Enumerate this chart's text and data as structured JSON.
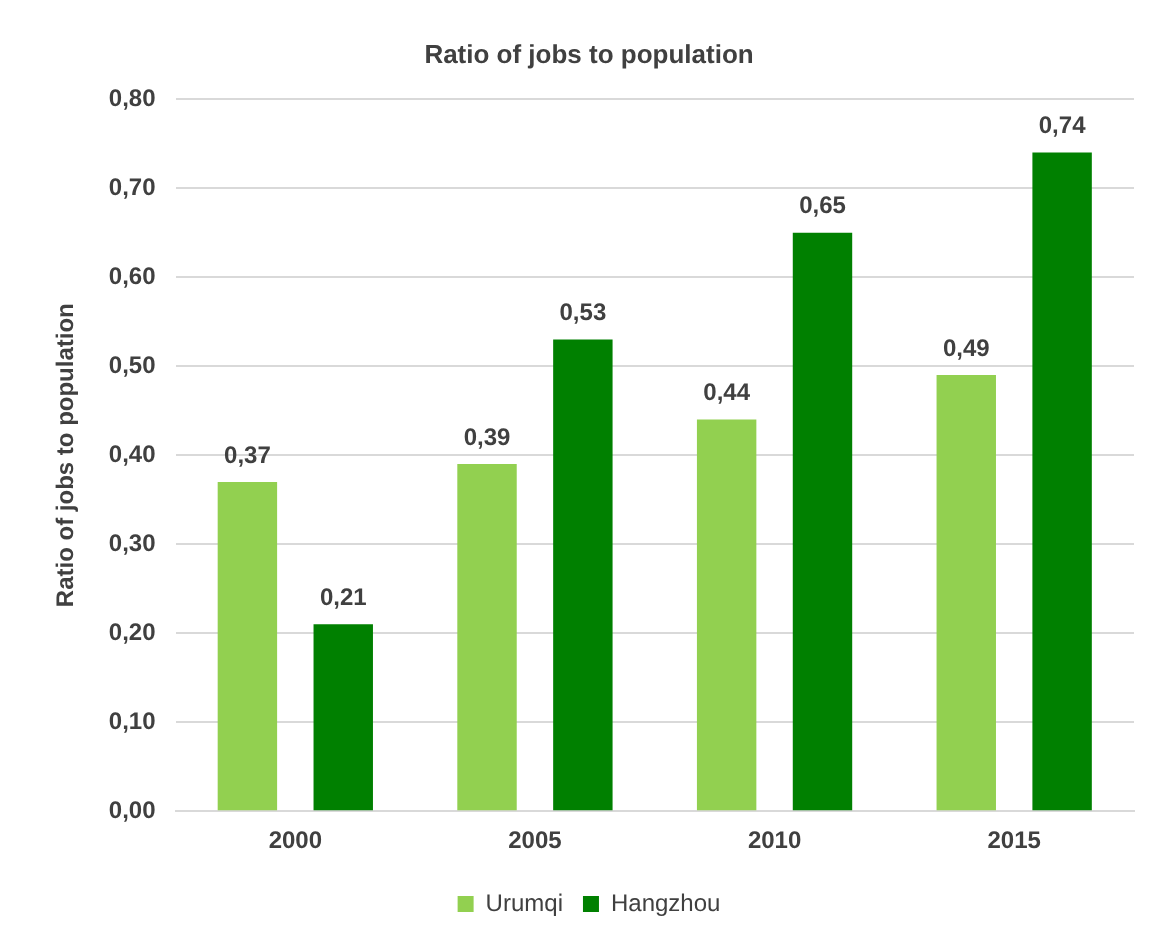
{
  "chart_data": {
    "type": "bar",
    "title": "Ratio of jobs to population",
    "ylabel": "Ratio of jobs to population",
    "categories": [
      "2000",
      "2005",
      "2010",
      "2015"
    ],
    "series": [
      {
        "name": "Urumqi",
        "color": "#92d050",
        "values": [
          0.37,
          0.39,
          0.44,
          0.49
        ],
        "value_labels": [
          "0,37",
          "0,39",
          "0,44",
          "0,49"
        ]
      },
      {
        "name": "Hangzhou",
        "color": "#008000",
        "values": [
          0.21,
          0.53,
          0.65,
          0.74
        ],
        "value_labels": [
          "0,21",
          "0,53",
          "0,65",
          "0,74"
        ]
      }
    ],
    "ylim": [
      0,
      0.8
    ],
    "yticks": [
      {
        "value": 0,
        "label": "0,00"
      },
      {
        "value": 0.1,
        "label": "0,10"
      },
      {
        "value": 0.2,
        "label": "0,20"
      },
      {
        "value": 0.3,
        "label": "0,30"
      },
      {
        "value": 0.4,
        "label": "0,40"
      },
      {
        "value": 0.5,
        "label": "0,50"
      },
      {
        "value": 0.6,
        "label": "0,60"
      },
      {
        "value": 0.7,
        "label": "0,70"
      },
      {
        "value": 0.8,
        "label": "0,80"
      }
    ],
    "grid": "y",
    "legend": "bottom"
  }
}
